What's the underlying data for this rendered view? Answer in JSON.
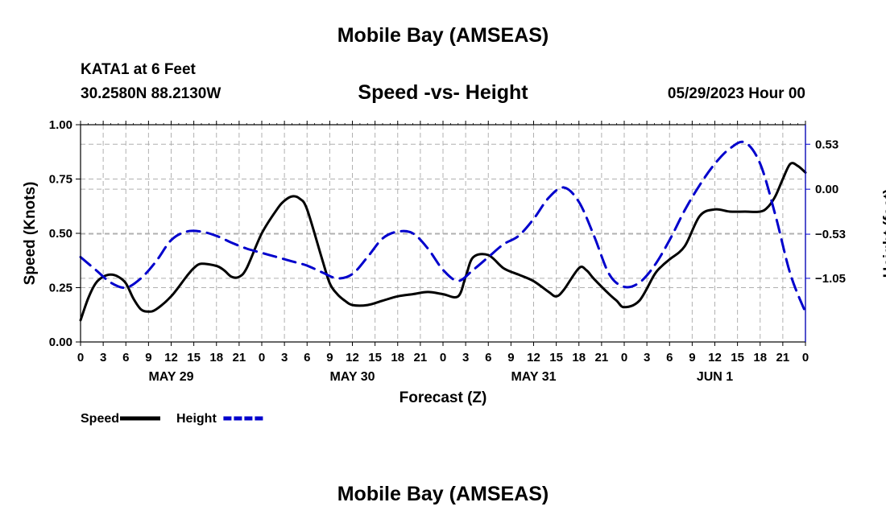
{
  "header": {
    "title": "Mobile Bay (AMSEAS)",
    "station": "KATA1 at 6 Feet",
    "coords": "30.2580N  88.2130W",
    "datetime": "05/29/2023 Hour 00",
    "footer_title": "Mobile Bay (AMSEAS)"
  },
  "chart_data": {
    "type": "line",
    "title": "Speed -vs- Height",
    "xlabel": "Forecast (Z)",
    "ylabel": "Speed (Knots)",
    "y2label": "Height (feet)",
    "xlim": [
      0,
      96
    ],
    "ylim": [
      0,
      1
    ],
    "y2lim": [
      -1.8,
      0.76
    ],
    "x_ticks": [
      0,
      3,
      6,
      9,
      12,
      15,
      18,
      21,
      24,
      27,
      30,
      33,
      36,
      39,
      42,
      45,
      48,
      51,
      54,
      57,
      60,
      63,
      66,
      69,
      72,
      75,
      78,
      81,
      84,
      87,
      90,
      93,
      96
    ],
    "x_tick_labels": [
      "0",
      "3",
      "6",
      "9",
      "12",
      "15",
      "18",
      "21",
      "0",
      "3",
      "6",
      "9",
      "12",
      "15",
      "18",
      "21",
      "0",
      "3",
      "6",
      "9",
      "12",
      "15",
      "18",
      "21",
      "0",
      "3",
      "6",
      "9",
      "12",
      "15",
      "18",
      "21",
      "0"
    ],
    "day_labels": [
      {
        "x": 12,
        "label": "MAY 29"
      },
      {
        "x": 36,
        "label": "MAY 30"
      },
      {
        "x": 60,
        "label": "MAY 31"
      },
      {
        "x": 84,
        "label": "JUN 1"
      }
    ],
    "y_ticks": [
      0,
      0.25,
      0.5,
      0.75,
      1.0
    ],
    "y_tick_labels": [
      "0.00",
      "0.25",
      "0.50",
      "0.75",
      "1.00"
    ],
    "y2_ticks": [
      0.53,
      0.0,
      -0.53,
      -1.05
    ],
    "y2_tick_labels": [
      "0.53",
      "0.00",
      "−0.53",
      "−1.05"
    ],
    "grid": true,
    "legend": [
      {
        "label": "Speed",
        "color": "#000000",
        "dashed": false
      },
      {
        "label": "Height",
        "color": "#0000cc",
        "dashed": true
      }
    ],
    "series": [
      {
        "name": "Speed",
        "axis": "left",
        "color": "#000000",
        "x": [
          0,
          1,
          2,
          3,
          4,
          5,
          6,
          7,
          8,
          9,
          10,
          12,
          14,
          15,
          16,
          18,
          19,
          20,
          21,
          22,
          24,
          26,
          27,
          28,
          29,
          30,
          32,
          33,
          34,
          35,
          36,
          38,
          40,
          42,
          44,
          46,
          48,
          50,
          51,
          52,
          54,
          56,
          58,
          60,
          62,
          63,
          64,
          66,
          67,
          68,
          70,
          71,
          72,
          74,
          76,
          77,
          78,
          80,
          82,
          84,
          86,
          88,
          90,
          91,
          92,
          93,
          94,
          95,
          96
        ],
        "values": [
          0.1,
          0.2,
          0.27,
          0.3,
          0.31,
          0.3,
          0.27,
          0.2,
          0.15,
          0.14,
          0.15,
          0.21,
          0.3,
          0.34,
          0.36,
          0.35,
          0.33,
          0.3,
          0.3,
          0.34,
          0.5,
          0.61,
          0.65,
          0.67,
          0.66,
          0.61,
          0.38,
          0.27,
          0.22,
          0.19,
          0.17,
          0.17,
          0.19,
          0.21,
          0.22,
          0.23,
          0.22,
          0.21,
          0.3,
          0.39,
          0.4,
          0.34,
          0.31,
          0.28,
          0.23,
          0.21,
          0.24,
          0.34,
          0.33,
          0.29,
          0.22,
          0.19,
          0.16,
          0.19,
          0.31,
          0.35,
          0.38,
          0.44,
          0.58,
          0.61,
          0.6,
          0.6,
          0.6,
          0.62,
          0.67,
          0.75,
          0.82,
          0.81,
          0.78
        ]
      },
      {
        "name": "Height",
        "axis": "right",
        "color": "#0000cc",
        "dashed": true,
        "x": [
          0,
          2,
          4,
          6,
          8,
          10,
          12,
          14,
          16,
          18,
          20,
          22,
          24,
          26,
          28,
          30,
          32,
          34,
          36,
          38,
          40,
          42,
          44,
          46,
          48,
          50,
          52,
          54,
          56,
          58,
          60,
          62,
          64,
          66,
          68,
          70,
          72,
          74,
          76,
          78,
          80,
          82,
          84,
          86,
          88,
          90,
          92,
          94,
          96
        ],
        "values": [
          -0.8,
          -0.95,
          -1.1,
          -1.16,
          -1.05,
          -0.85,
          -0.6,
          -0.5,
          -0.5,
          -0.55,
          -0.63,
          -0.7,
          -0.75,
          -0.8,
          -0.85,
          -0.9,
          -0.98,
          -1.05,
          -1.0,
          -0.8,
          -0.58,
          -0.5,
          -0.52,
          -0.7,
          -0.95,
          -1.08,
          -0.95,
          -0.8,
          -0.65,
          -0.55,
          -0.35,
          -0.1,
          0.02,
          -0.15,
          -0.55,
          -1.0,
          -1.15,
          -1.1,
          -0.9,
          -0.6,
          -0.25,
          0.05,
          0.3,
          0.48,
          0.55,
          0.3,
          -0.3,
          -1.0,
          -1.45
        ]
      }
    ]
  }
}
